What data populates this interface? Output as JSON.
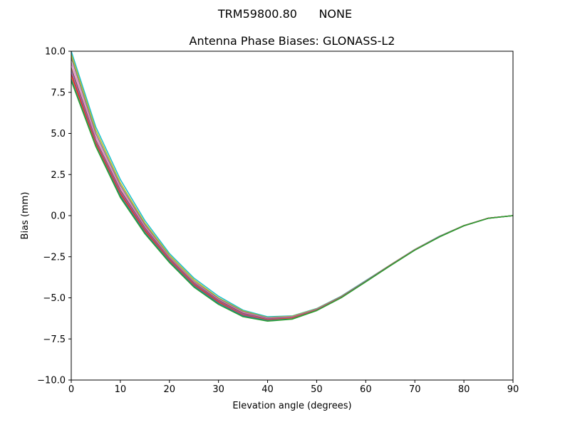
{
  "chart_data": {
    "type": "line",
    "suptitle": "TRM59800.80      NONE",
    "title": "Antenna Phase Biases: GLONASS-L2",
    "xlabel": "Elevation angle (degrees)",
    "ylabel": "Bias (mm)",
    "xlim": [
      0,
      90
    ],
    "ylim": [
      -10,
      10
    ],
    "xticks": [
      0,
      10,
      20,
      30,
      40,
      50,
      60,
      70,
      80,
      90
    ],
    "xtick_labels": [
      "0",
      "10",
      "20",
      "30",
      "40",
      "50",
      "60",
      "70",
      "80",
      "90"
    ],
    "yticks": [
      10,
      7.5,
      5,
      2.5,
      0,
      -2.5,
      -5,
      -7.5,
      -10
    ],
    "ytick_labels": [
      "10.0",
      "7.5",
      "5.0",
      "2.5",
      "0.0",
      "−2.5",
      "−5.0",
      "−7.5",
      "−10.0"
    ],
    "grid": false,
    "legend": "none",
    "x": [
      0,
      5,
      10,
      15,
      20,
      25,
      30,
      35,
      40,
      45,
      50,
      55,
      60,
      65,
      70,
      75,
      80,
      85,
      90
    ],
    "series": [
      {
        "color": "#17becf",
        "values": [
          10.0,
          5.4,
          2.2,
          -0.3,
          -2.3,
          -3.8,
          -4.9,
          -5.75,
          -6.15,
          -6.1,
          -5.65,
          -4.9,
          -3.95,
          -3.0,
          -2.05,
          -1.25,
          -0.6,
          -0.15,
          0.0
        ]
      },
      {
        "color": "#bcbd22",
        "values": [
          9.8,
          5.2,
          2.0,
          -0.45,
          -2.4,
          -3.9,
          -5.0,
          -5.8,
          -6.2,
          -6.12,
          -5.67,
          -4.92,
          -3.97,
          -3.0,
          -2.06,
          -1.26,
          -0.6,
          -0.15,
          0.0
        ]
      },
      {
        "color": "#7f7f7f",
        "values": [
          9.6,
          5.0,
          1.85,
          -0.55,
          -2.5,
          -4.0,
          -5.05,
          -5.85,
          -6.22,
          -6.15,
          -5.69,
          -4.93,
          -3.98,
          -3.01,
          -2.07,
          -1.27,
          -0.61,
          -0.15,
          0.0
        ]
      },
      {
        "color": "#e377c2",
        "values": [
          9.3,
          4.8,
          1.7,
          -0.65,
          -2.55,
          -4.05,
          -5.1,
          -5.9,
          -6.25,
          -6.17,
          -5.7,
          -4.94,
          -3.99,
          -3.02,
          -2.07,
          -1.27,
          -0.61,
          -0.15,
          0.0
        ]
      },
      {
        "color": "#8c564b",
        "values": [
          9.0,
          4.6,
          1.55,
          -0.75,
          -2.6,
          -4.1,
          -5.15,
          -5.95,
          -6.28,
          -6.2,
          -5.72,
          -4.95,
          -4.0,
          -3.02,
          -2.08,
          -1.28,
          -0.61,
          -0.15,
          0.0
        ]
      },
      {
        "color": "#9467bd",
        "values": [
          8.8,
          4.5,
          1.45,
          -0.82,
          -2.65,
          -4.15,
          -5.2,
          -6.0,
          -6.3,
          -6.22,
          -5.73,
          -4.96,
          -4.0,
          -3.03,
          -2.08,
          -1.28,
          -0.62,
          -0.15,
          0.0
        ]
      },
      {
        "color": "#d62728",
        "values": [
          8.6,
          4.4,
          1.35,
          -0.9,
          -2.7,
          -4.2,
          -5.25,
          -6.05,
          -6.33,
          -6.24,
          -5.75,
          -4.97,
          -4.01,
          -3.03,
          -2.09,
          -1.29,
          -0.62,
          -0.15,
          0.0
        ]
      },
      {
        "color": "#ff7f0e",
        "values": [
          8.4,
          4.3,
          1.25,
          -0.98,
          -2.75,
          -4.25,
          -5.3,
          -6.08,
          -6.36,
          -6.26,
          -5.76,
          -4.98,
          -4.02,
          -3.04,
          -2.09,
          -1.29,
          -0.62,
          -0.16,
          0.0
        ]
      },
      {
        "color": "#1f77b4",
        "values": [
          8.3,
          4.25,
          1.2,
          -1.02,
          -2.78,
          -4.28,
          -5.33,
          -6.1,
          -6.38,
          -6.28,
          -5.77,
          -4.99,
          -4.02,
          -3.04,
          -2.1,
          -1.29,
          -0.62,
          -0.16,
          0.0
        ]
      },
      {
        "color": "#2ca02c",
        "values": [
          8.2,
          4.2,
          1.1,
          -1.1,
          -2.85,
          -4.35,
          -5.4,
          -6.15,
          -6.42,
          -6.3,
          -5.78,
          -5.0,
          -4.03,
          -3.05,
          -2.1,
          -1.3,
          -0.62,
          -0.16,
          0.0
        ]
      }
    ]
  }
}
